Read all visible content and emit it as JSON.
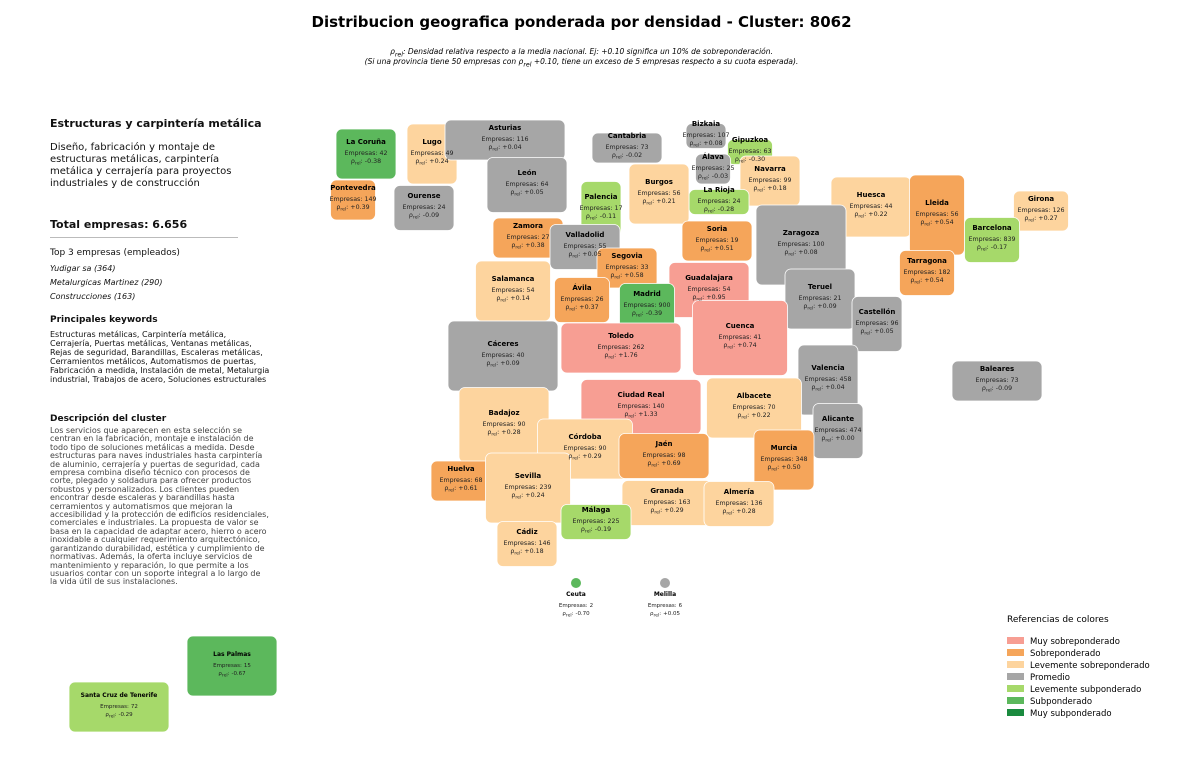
{
  "header": {
    "title": "Distribucion geografica ponderada por densidad - Cluster: 8062",
    "subtitle": {
      "line1": [
        {
          "t": "ρ"
        },
        {
          "sub": "rel"
        },
        {
          "t": ": Densidad relativa respecto a la media nacional. Ej: +0.10 significa un 10% de sobreponderación."
        }
      ],
      "line2": [
        {
          "t": "(Si una provincia tiene 50 empresas con "
        },
        {
          "t": "ρ"
        },
        {
          "sub": "rel"
        },
        {
          "t": " +0.10, tiene un exceso de 5 empresas respecto a su cuota esperada)."
        }
      ]
    }
  },
  "sidebar": {
    "title": "Estructuras y carpintería metálica",
    "summary": "Diseño, fabricación y montaje de estructuras metálicas, carpintería metálica y cerrajería para proyectos industriales y de construcción",
    "total": "Total empresas: 6.656",
    "top_title": "Top 3 empresas (empleados)",
    "top": [
      "Yudigar sa (364)",
      "Metalurgicas Martinez (290)",
      "Construcciones (163)"
    ],
    "keywords_title": "Principales keywords",
    "keywords": "Estructuras metálicas, Carpintería metálica, Cerrajería, Puertas metálicas, Ventanas metálicas, Rejas de seguridad, Barandillas, Escaleras metálicas, Cerramientos metálicos, Automatismos de puertas, Fabricación a medida, Instalación de metal, Metalurgia industrial, Trabajos de acero, Soluciones estructurales",
    "description_title": "Descripción del cluster",
    "description": "Los servicios que aparecen en esta selección se centran en la fabricación, montaje e instalación de todo tipo de soluciones metálicas a medida. Desde estructuras para naves industriales hasta carpintería de aluminio, cerrajería y puertas de seguridad, cada empresa combina diseño técnico con procesos de corte, plegado y soldadura para ofrecer productos robustos y personalizados. Los clientes pueden encontrar desde escaleras y barandillas hasta cerramientos y automatismos que mejoran la accesibilidad y la protección de edificios residenciales, comerciales e industriales. La propuesta de valor se basa en la capacidad de adaptar acero, hierro o acero inoxidable a cualquier requerimiento arquitectónico, garantizando durabilidad, estética y cumplimiento de normativas. Además, la oferta incluye servicios de mantenimiento y reparación, lo que permite a los usuarios contar con un soporte integral a lo largo de la vida útil de sus instalaciones."
  },
  "map": {
    "empresas_label": "Empresas:",
    "rho_symbol": "ρ",
    "rho_sub": "rel",
    "rho_colon": ":",
    "provinces": [
      {
        "name": "La Coruña",
        "empresas": 42,
        "rho": "-0.38",
        "color": "#5cb85c"
      },
      {
        "name": "Lugo",
        "empresas": 49,
        "rho": "+0.24",
        "color": "#fdd49e"
      },
      {
        "name": "Asturias",
        "empresas": 116,
        "rho": "+0.04",
        "color": "#a6a6a6"
      },
      {
        "name": "Cantabria",
        "empresas": 73,
        "rho": "-0.02",
        "color": "#a6a6a6"
      },
      {
        "name": "Bizkaia",
        "empresas": 107,
        "rho": "+0.08",
        "color": "#a6a6a6"
      },
      {
        "name": "Gipuzkoa",
        "empresas": 63,
        "rho": "-0.30",
        "color": "#a6d96a"
      },
      {
        "name": "Álava",
        "empresas": 25,
        "rho": "-0.03",
        "color": "#a6a6a6"
      },
      {
        "name": "Navarra",
        "empresas": 99,
        "rho": "+0.18",
        "color": "#fdd49e"
      },
      {
        "name": "La Rioja",
        "empresas": 24,
        "rho": "-0.28",
        "color": "#a6d96a"
      },
      {
        "name": "León",
        "empresas": 64,
        "rho": "+0.05",
        "color": "#a6a6a6"
      },
      {
        "name": "Palencia",
        "empresas": 17,
        "rho": "-0.11",
        "color": "#a6d96a"
      },
      {
        "name": "Burgos",
        "empresas": 56,
        "rho": "+0.21",
        "color": "#fdd49e"
      },
      {
        "name": "Pontevedra",
        "empresas": 149,
        "rho": "+0.39",
        "color": "#f5a55a"
      },
      {
        "name": "Ourense",
        "empresas": 24,
        "rho": "-0.09",
        "color": "#a6a6a6"
      },
      {
        "name": "Huesca",
        "empresas": 44,
        "rho": "+0.22",
        "color": "#fdd49e"
      },
      {
        "name": "Lleida",
        "empresas": 56,
        "rho": "+0.54",
        "color": "#f5a55a"
      },
      {
        "name": "Girona",
        "empresas": 126,
        "rho": "+0.27",
        "color": "#fdd49e"
      },
      {
        "name": "Barcelona",
        "empresas": 839,
        "rho": "-0.17",
        "color": "#a6d96a"
      },
      {
        "name": "Zamora",
        "empresas": 27,
        "rho": "+0.38",
        "color": "#f5a55a"
      },
      {
        "name": "Valladolid",
        "empresas": 55,
        "rho": "+0.05",
        "color": "#a6a6a6"
      },
      {
        "name": "Soria",
        "empresas": 19,
        "rho": "+0.51",
        "color": "#f5a55a"
      },
      {
        "name": "Zaragoza",
        "empresas": 100,
        "rho": "+0.08",
        "color": "#a6a6a6"
      },
      {
        "name": "Tarragona",
        "empresas": 182,
        "rho": "+0.54",
        "color": "#f5a55a"
      },
      {
        "name": "Segovia",
        "empresas": 33,
        "rho": "+0.58",
        "color": "#f5a55a"
      },
      {
        "name": "Salamanca",
        "empresas": 54,
        "rho": "+0.14",
        "color": "#fdd49e"
      },
      {
        "name": "Guadalajara",
        "empresas": 54,
        "rho": "+0.95",
        "color": "#f79e93"
      },
      {
        "name": "Ávila",
        "empresas": 26,
        "rho": "+0.37",
        "color": "#f5a55a"
      },
      {
        "name": "Madrid",
        "empresas": 900,
        "rho": "-0.39",
        "color": "#5cb85c"
      },
      {
        "name": "Teruel",
        "empresas": 21,
        "rho": "+0.09",
        "color": "#a6a6a6"
      },
      {
        "name": "Castellón",
        "empresas": 96,
        "rho": "+0.05",
        "color": "#a6a6a6"
      },
      {
        "name": "Toledo",
        "empresas": 262,
        "rho": "+1.76",
        "color": "#f79e93"
      },
      {
        "name": "Cuenca",
        "empresas": 41,
        "rho": "+0.74",
        "color": "#f79e93"
      },
      {
        "name": "Cáceres",
        "empresas": 40,
        "rho": "+0.09",
        "color": "#a6a6a6"
      },
      {
        "name": "Valencia",
        "empresas": 458,
        "rho": "+0.04",
        "color": "#a6a6a6"
      },
      {
        "name": "Baleares",
        "empresas": 73,
        "rho": "-0.09",
        "color": "#a6a6a6"
      },
      {
        "name": "Ciudad Real",
        "empresas": 140,
        "rho": "+1.33",
        "color": "#f79e93"
      },
      {
        "name": "Albacete",
        "empresas": 70,
        "rho": "+0.22",
        "color": "#fdd49e"
      },
      {
        "name": "Badajoz",
        "empresas": 90,
        "rho": "+0.28",
        "color": "#fdd49e"
      },
      {
        "name": "Alicante",
        "empresas": 474,
        "rho": "+0.00",
        "color": "#a6a6a6"
      },
      {
        "name": "Córdoba",
        "empresas": 90,
        "rho": "+0.29",
        "color": "#fdd49e"
      },
      {
        "name": "Jaén",
        "empresas": 98,
        "rho": "+0.69",
        "color": "#f5a55a"
      },
      {
        "name": "Murcia",
        "empresas": 348,
        "rho": "+0.50",
        "color": "#f5a55a"
      },
      {
        "name": "Huelva",
        "empresas": 68,
        "rho": "+0.61",
        "color": "#f5a55a"
      },
      {
        "name": "Sevilla",
        "empresas": 239,
        "rho": "+0.24",
        "color": "#fdd49e"
      },
      {
        "name": "Granada",
        "empresas": 163,
        "rho": "+0.29",
        "color": "#fdd49e"
      },
      {
        "name": "Almería",
        "empresas": 136,
        "rho": "+0.28",
        "color": "#fdd49e"
      },
      {
        "name": "Málaga",
        "empresas": 225,
        "rho": "-0.19",
        "color": "#a6d96a"
      },
      {
        "name": "Cádiz",
        "empresas": 146,
        "rho": "+0.18",
        "color": "#fdd49e"
      },
      {
        "name": "Ceuta",
        "empresas": 2,
        "rho": "-0.70",
        "color": "#5cb85c"
      },
      {
        "name": "Melilla",
        "empresas": 6,
        "rho": "+0.05",
        "color": "#a6a6a6"
      },
      {
        "name": "Las Palmas",
        "empresas": 15,
        "rho": "-0.67",
        "color": "#5cb85c"
      },
      {
        "name": "Santa Cruz de Tenerife",
        "empresas": 72,
        "rho": "-0.29",
        "color": "#a6d96a"
      }
    ]
  },
  "legend": {
    "title": "Referencias de colores",
    "items": [
      {
        "name": "Muy sobreponderado",
        "color": "#f79e93"
      },
      {
        "name": "Sobreponderado",
        "color": "#f5a55a"
      },
      {
        "name": "Levemente sobreponderado",
        "color": "#fdd49e"
      },
      {
        "name": "Promedio",
        "color": "#a6a6a6"
      },
      {
        "name": "Levemente subponderado",
        "color": "#a6d96a"
      },
      {
        "name": "Subponderado",
        "color": "#5cb85c"
      },
      {
        "name": "Muy subponderado",
        "color": "#1a8a3e"
      }
    ]
  }
}
